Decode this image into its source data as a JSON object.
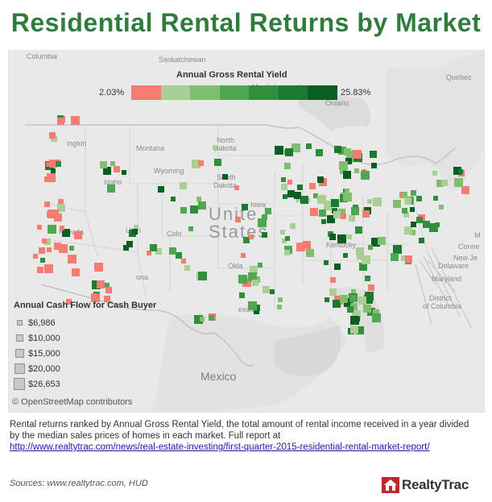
{
  "title": "Residential Rental Returns by Market",
  "colors": {
    "title": "#2f7d3c",
    "low": "#f47c72",
    "scale": [
      "#f47c72",
      "#a9cf95",
      "#7fbf6e",
      "#4fa84f",
      "#2f8f3c",
      "#1a7a30",
      "#0b5e22"
    ]
  },
  "yield_legend": {
    "title": "Annual Gross Rental Yield",
    "min_label": "2.03%",
    "max_label": "25.83%",
    "min": 2.03,
    "max": 25.83
  },
  "size_legend": {
    "title": "Annual Cash Flow for Cash Buyer",
    "items": [
      {
        "label": "$6,986",
        "value": 6986
      },
      {
        "label": "$10,000",
        "value": 10000
      },
      {
        "label": "$15,000",
        "value": 15000
      },
      {
        "label": "$20,000",
        "value": 20000
      },
      {
        "label": "$26,653",
        "value": 26653
      }
    ]
  },
  "map_labels": {
    "country_us": "United States",
    "country_us_line1": "Unite",
    "country_us_line2": "States",
    "mexico": "Mexico",
    "columbia": "Columbia",
    "saskatchewan": "Saskatchewan",
    "manitoba": "Manitoba",
    "quebec": "Quebec",
    "ontario": "Ontario",
    "montana": "Montana",
    "washington": "ington",
    "north_dakota_1": "North",
    "north_dakota_2": "Dakota",
    "south_dakota_1": "South",
    "south_dakota_2": "Dakota",
    "idaho": "Idaho",
    "wyoming": "Wyoming",
    "nevada": "Nevada",
    "utah": "Utah",
    "colorado": "Colo",
    "iowa": "Iowa",
    "illinois": "Illino",
    "kentucky": "Kentucky",
    "oklahoma": "Okla",
    "texas": "exas",
    "arizona": "ona",
    "maryland": "Maryland",
    "delaware": "Delaware",
    "new_jersey": "New Je",
    "connecticut": "Conne",
    "district_1": "District",
    "district_2": "of Columbia",
    "mass": "M"
  },
  "attribution": "© OpenStreetMap contributors",
  "description_text": "Rental returns ranked by Annual Gross Rental Yield, the total amount of rental income received in a year divided by the median sales prices of homes in each market. Full report at",
  "report_link": "http://www.realtytrac.com/news/real-estate-investing/first-quarter-2015-residential-rental-market-report/",
  "sources": "Sources: www.realtytrac.com, HUD",
  "brand": "RealtyTrac"
}
